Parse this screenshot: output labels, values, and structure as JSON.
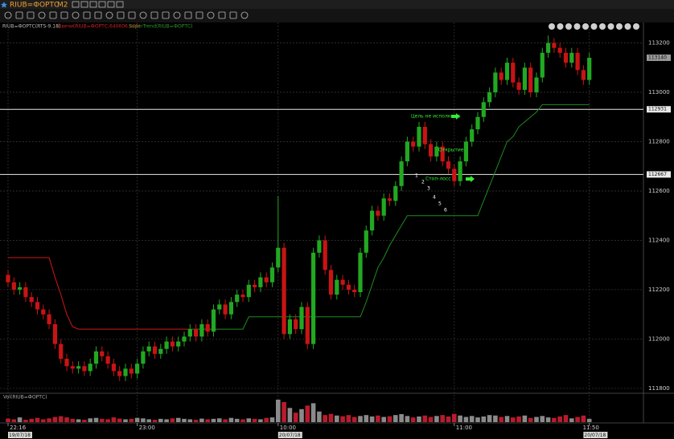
{
  "toolbar": {
    "symbol": "RIUB=ФОРТС",
    "timeframe": "M2"
  },
  "chart_data": {
    "type": "candlestick",
    "legend": [
      "RIUB=ФОРТС(RTS-9.18)",
      "Свечи(RIUB=ФОРТС,640606.608)",
      "SuperTrend(RIUB=ФОРТС)"
    ],
    "categories": [
      "22:16",
      null,
      null,
      null,
      null,
      null,
      null,
      null,
      null,
      null,
      null,
      null,
      null,
      null,
      null,
      null,
      null,
      null,
      null,
      null,
      null,
      null,
      "23:00",
      null,
      null,
      null,
      null,
      null,
      null,
      null,
      null,
      null,
      null,
      null,
      null,
      null,
      null,
      null,
      null,
      null,
      null,
      null,
      null,
      null,
      null,
      null,
      "10:00",
      null,
      null,
      null,
      null,
      null,
      null,
      null,
      null,
      null,
      null,
      null,
      null,
      null,
      null,
      null,
      null,
      null,
      null,
      null,
      null,
      null,
      null,
      null,
      null,
      null,
      null,
      null,
      null,
      null,
      "11:00",
      null,
      null,
      null,
      null,
      null,
      null,
      null,
      null,
      null,
      null,
      null,
      null,
      null,
      null,
      null,
      null,
      null,
      null,
      null,
      null,
      null,
      null,
      "11:50"
    ],
    "dates": [
      "19/07/18",
      null,
      null,
      null,
      null,
      null,
      null,
      null,
      null,
      null,
      null,
      null,
      null,
      null,
      null,
      null,
      null,
      null,
      null,
      null,
      null,
      null,
      null,
      null,
      null,
      null,
      null,
      null,
      null,
      null,
      null,
      null,
      null,
      null,
      null,
      null,
      null,
      null,
      null,
      null,
      null,
      null,
      null,
      null,
      null,
      null,
      "20/07/18",
      null,
      null,
      null,
      null,
      null,
      null,
      null,
      null,
      null,
      null,
      null,
      null,
      null,
      null,
      null,
      null,
      null,
      null,
      null,
      null,
      null,
      null,
      null,
      null,
      null,
      null,
      null,
      null,
      null,
      null,
      null,
      null,
      null,
      null,
      null,
      null,
      null,
      null,
      null,
      null,
      null,
      null,
      null,
      null,
      null,
      null,
      null,
      null,
      null,
      null,
      null,
      "20/07/18"
    ],
    "open": [
      112260,
      112230,
      112200,
      112210,
      112170,
      112150,
      112120,
      112100,
      112060,
      111980,
      111920,
      111890,
      111880,
      111890,
      111870,
      111900,
      111950,
      111930,
      111900,
      111870,
      111850,
      111880,
      111860,
      111900,
      111950,
      111970,
      111940,
      111960,
      111990,
      111970,
      111990,
      112010,
      112040,
      112010,
      112060,
      112030,
      112120,
      112140,
      112100,
      112150,
      112180,
      112170,
      112220,
      112210,
      112250,
      112230,
      112290,
      112370,
      112020,
      112080,
      112040,
      112130,
      111980,
      112350,
      112400,
      112280,
      112180,
      112240,
      112220,
      112200,
      112190,
      112350,
      112440,
      112520,
      112500,
      112570,
      112560,
      112620,
      112720,
      112800,
      112780,
      112860,
      112790,
      112740,
      112780,
      112720,
      112690,
      112640,
      112720,
      112800,
      112850,
      112900,
      112960,
      113000,
      113080,
      113050,
      113120,
      113040,
      113010,
      113100,
      113000,
      113060,
      113160,
      113200,
      113180,
      113160,
      113120,
      113160,
      113090,
      113050
    ],
    "high": [
      112280,
      112250,
      112230,
      112230,
      112190,
      112170,
      112140,
      112120,
      112080,
      112000,
      111940,
      111910,
      111910,
      111910,
      111920,
      111970,
      111970,
      111950,
      111920,
      111890,
      111900,
      111900,
      111920,
      111970,
      111990,
      111990,
      111980,
      112010,
      112010,
      112010,
      112030,
      112060,
      112060,
      112080,
      112080,
      112140,
      112160,
      112160,
      112170,
      112200,
      112200,
      112240,
      112240,
      112270,
      112270,
      112310,
      112580,
      112390,
      112100,
      112100,
      112150,
      112150,
      112370,
      112420,
      112420,
      112300,
      112260,
      112260,
      112240,
      112220,
      112370,
      112460,
      112540,
      112540,
      112590,
      112590,
      112640,
      112740,
      112820,
      112820,
      112880,
      112880,
      112810,
      112800,
      112800,
      112740,
      112710,
      112740,
      112820,
      112870,
      112920,
      112980,
      113020,
      113100,
      113100,
      113140,
      113140,
      113060,
      113120,
      113120,
      113080,
      113180,
      113230,
      113220,
      113200,
      113180,
      113180,
      113180,
      113110,
      113160
    ],
    "low": [
      112210,
      112180,
      112180,
      112150,
      112130,
      112100,
      112080,
      112040,
      111960,
      111900,
      111870,
      111860,
      111860,
      111850,
      111850,
      111880,
      111910,
      111880,
      111850,
      111830,
      111830,
      111840,
      111840,
      111880,
      111930,
      111920,
      111920,
      111940,
      111950,
      111950,
      111970,
      111990,
      111990,
      111990,
      112010,
      112010,
      112100,
      112080,
      112080,
      112130,
      112150,
      112150,
      112190,
      112190,
      112210,
      112210,
      112270,
      112000,
      112000,
      112020,
      112020,
      111960,
      111960,
      112330,
      112260,
      112160,
      112160,
      112200,
      112180,
      112170,
      112170,
      112330,
      112420,
      112480,
      112480,
      112540,
      112540,
      112600,
      112700,
      112760,
      112760,
      112770,
      112720,
      112720,
      112700,
      112670,
      112620,
      112620,
      112700,
      112780,
      112830,
      112880,
      112940,
      112980,
      113030,
      113030,
      113020,
      112990,
      112990,
      112980,
      112980,
      113040,
      113140,
      113160,
      113140,
      113100,
      113100,
      113070,
      113030,
      113030
    ],
    "close": [
      112230,
      112200,
      112210,
      112170,
      112150,
      112120,
      112100,
      112060,
      111980,
      111920,
      111890,
      111880,
      111890,
      111870,
      111900,
      111950,
      111930,
      111900,
      111870,
      111850,
      111880,
      111860,
      111900,
      111950,
      111970,
      111940,
      111960,
      111990,
      111970,
      111990,
      112010,
      112040,
      112010,
      112060,
      112030,
      112120,
      112140,
      112100,
      112150,
      112180,
      112170,
      112220,
      112210,
      112250,
      112230,
      112290,
      112370,
      112020,
      112080,
      112040,
      112130,
      111980,
      112350,
      112400,
      112280,
      112180,
      112240,
      112220,
      112200,
      112190,
      112350,
      112440,
      112520,
      112500,
      112570,
      112560,
      112620,
      112720,
      112800,
      112780,
      112860,
      112790,
      112740,
      112780,
      112720,
      112690,
      112640,
      112720,
      112800,
      112850,
      112900,
      112960,
      113000,
      113080,
      113050,
      113120,
      113040,
      113010,
      113100,
      113000,
      113060,
      113160,
      113200,
      113180,
      113160,
      113120,
      113160,
      113090,
      113050,
      113140
    ],
    "up_color": "#22a822",
    "down_color": "#c81414",
    "supertrend": [
      {
        "color": "#d01818",
        "values": [
          112330,
          112330,
          112330,
          112330,
          112330,
          112330,
          112330,
          112330,
          112250,
          112180,
          112100,
          112050,
          112040,
          112040,
          112040,
          112040,
          112040,
          112040,
          112040,
          112040,
          112040,
          112040,
          112040,
          112040,
          112040,
          112040,
          112040,
          112040,
          112040,
          112040,
          112040,
          112040,
          null,
          null,
          null,
          null,
          null,
          null,
          null,
          null,
          null,
          null,
          null,
          null,
          null,
          null,
          null,
          null,
          null,
          null,
          null,
          null,
          null,
          null,
          null,
          null,
          null,
          null,
          null,
          null,
          null,
          null,
          null,
          null,
          null,
          null,
          null,
          null,
          null,
          null,
          null,
          null,
          null,
          null,
          null,
          null,
          null,
          null,
          null,
          null,
          null,
          null,
          null,
          null,
          null,
          null,
          null,
          null,
          null,
          null,
          null,
          null,
          null,
          null,
          null,
          null,
          null,
          null,
          null,
          null
        ]
      },
      {
        "color": "#1e8c1e",
        "values": [
          null,
          null,
          null,
          null,
          null,
          null,
          null,
          null,
          null,
          null,
          null,
          null,
          null,
          null,
          null,
          null,
          null,
          null,
          null,
          null,
          null,
          null,
          null,
          null,
          null,
          null,
          null,
          null,
          null,
          null,
          null,
          112040,
          112040,
          112040,
          112040,
          112040,
          112040,
          112040,
          112040,
          112040,
          112040,
          112090,
          112090,
          112090,
          112090,
          112090,
          112090,
          112090,
          112090,
          112090,
          112090,
          112090,
          112090,
          112090,
          112090,
          112090,
          112090,
          112090,
          112090,
          112090,
          112090,
          112150,
          112220,
          112290,
          112330,
          112380,
          112420,
          112460,
          112500,
          112500,
          112500,
          112500,
          112500,
          112500,
          112500,
          112500,
          112500,
          112500,
          112500,
          112500,
          112500,
          112560,
          112620,
          112680,
          112740,
          112800,
          112820,
          112860,
          112880,
          112900,
          112920,
          112950,
          112950,
          112950,
          112950,
          112950,
          112950,
          112950,
          112950,
          112950
        ]
      }
    ],
    "ylim": [
      111790,
      113283
    ],
    "yticks": [
      111800,
      112000,
      112200,
      112400,
      112600,
      112800,
      113000,
      113200
    ],
    "grid": true,
    "last_price": 113140,
    "hlines": [
      112931,
      112667
    ],
    "annotations": [
      "Цель не исполнена",
      "Открытие",
      "Стоп-лосс"
    ],
    "trade_marks": [
      "1",
      "2",
      "3",
      "4",
      "5",
      "6"
    ],
    "volume": {
      "label": "Vol(RIUB=ФОРТС)",
      "values": [
        15,
        12,
        20,
        10,
        14,
        18,
        12,
        16,
        22,
        25,
        20,
        14,
        12,
        10,
        16,
        18,
        14,
        12,
        20,
        15,
        12,
        14,
        18,
        16,
        12,
        10,
        14,
        12,
        16,
        18,
        14,
        12,
        10,
        15,
        12,
        14,
        16,
        12,
        18,
        14,
        12,
        16,
        14,
        12,
        18,
        20,
        95,
        85,
        60,
        40,
        55,
        70,
        80,
        45,
        30,
        35,
        28,
        25,
        30,
        22,
        26,
        30,
        24,
        28,
        22,
        25,
        30,
        34,
        26,
        20,
        24,
        28,
        22,
        26,
        30,
        24,
        35,
        28,
        22,
        26,
        20,
        24,
        30,
        28,
        22,
        26,
        20,
        24,
        28,
        18,
        22,
        26,
        20,
        18,
        24,
        30,
        16,
        22,
        28,
        14
      ]
    }
  }
}
